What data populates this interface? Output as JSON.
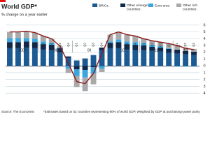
{
  "chart_data": {
    "type": "stacked-bar-line",
    "title": "World GDP*",
    "subtitle": "% change on a year earlier",
    "categories": [
      "Q1",
      "Q2",
      "Q3",
      "Q4",
      "Q1",
      "Q2",
      "Q3",
      "Q4",
      "Q1",
      "Q2",
      "Q3",
      "Q4",
      "Q1",
      "Q2",
      "Q3",
      "Q4",
      "Q1",
      "Q2",
      "Q3",
      "Q4",
      "Q1",
      "Q2",
      "Q3"
    ],
    "years": [
      "2007",
      "08",
      "09",
      "10",
      "11",
      "12"
    ],
    "series": [
      {
        "name": "BRICs",
        "color": "#1c5a94",
        "values": [
          2.6,
          2.6,
          2.7,
          2.6,
          2.4,
          2.3,
          2.0,
          1.2,
          0.8,
          1.1,
          1.6,
          2.3,
          2.6,
          2.6,
          2.4,
          2.3,
          2.3,
          2.2,
          2.1,
          1.9,
          1.8,
          1.7,
          1.6
        ]
      },
      {
        "name": "Other emerging countries",
        "color": "#0f2a4d",
        "values": [
          0.9,
          0.9,
          0.9,
          0.9,
          0.8,
          0.8,
          0.6,
          0.2,
          -0.5,
          -0.6,
          -0.2,
          0.4,
          0.8,
          0.9,
          0.8,
          0.8,
          0.7,
          0.6,
          0.6,
          0.6,
          0.6,
          0.5,
          0.5
        ]
      },
      {
        "name": "Euro area",
        "color": "#3aa6dd",
        "values": [
          0.6,
          0.6,
          0.5,
          0.5,
          0.4,
          0.3,
          0.1,
          -0.4,
          -1.0,
          -1.1,
          -0.9,
          -0.4,
          0.2,
          0.4,
          0.4,
          0.4,
          0.4,
          0.3,
          0.2,
          0.1,
          -0.1,
          -0.1,
          -0.1
        ]
      },
      {
        "name": "Other rich countries",
        "color": "#a9a9a9",
        "values": [
          0.9,
          0.9,
          1.0,
          0.9,
          0.8,
          0.6,
          0.2,
          -0.6,
          -1.6,
          -2.0,
          -1.6,
          -0.5,
          1.0,
          1.1,
          1.0,
          0.9,
          0.6,
          0.6,
          0.6,
          0.7,
          0.7,
          0.5,
          0.4
        ]
      }
    ],
    "line": {
      "color": "#8b1a1a",
      "values": [
        5.0,
        5.0,
        5.1,
        4.9,
        4.4,
        4.0,
        2.9,
        0.4,
        -2.3,
        -2.6,
        -1.1,
        1.8,
        4.6,
        5.0,
        4.6,
        4.4,
        4.0,
        3.7,
        3.5,
        3.3,
        3.0,
        2.6,
        2.4
      ]
    },
    "ylim": [
      -4.5,
      6.5
    ],
    "yticks": [
      6,
      5,
      4,
      3,
      2,
      1,
      0,
      {
        "value": -1,
        "label": "1"
      },
      {
        "value": -2,
        "label": "2"
      },
      {
        "value": -3,
        "label": "3"
      },
      {
        "value": -4,
        "label": "4"
      }
    ],
    "grid": true,
    "source": "Source: The Economist",
    "note": "*Estimates based on 52 countries representing 90% of world GDP. Weighted by GDP at purchasing-power parity"
  }
}
